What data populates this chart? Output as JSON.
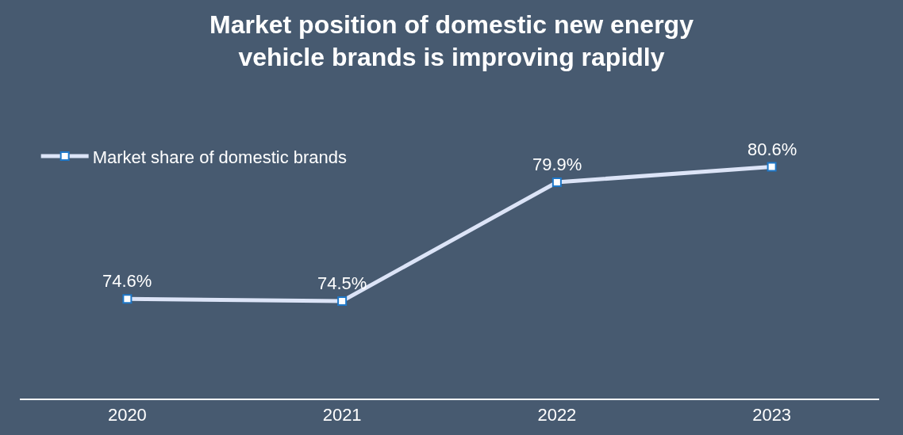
{
  "chart_data": {
    "type": "line",
    "title": "Market position of domestic new energy vehicle brands is improving rapidly",
    "categories": [
      "2020",
      "2021",
      "2022",
      "2023"
    ],
    "series": [
      {
        "name": "Market share of domestic brands",
        "color": "#dce4f7",
        "values": [
          74.6,
          74.5,
          79.9,
          80.6
        ],
        "value_labels": [
          "74.6%",
          "74.5%",
          "79.9%",
          "80.6%"
        ]
      }
    ],
    "marker": "square",
    "legend": "top left",
    "grid": false
  }
}
